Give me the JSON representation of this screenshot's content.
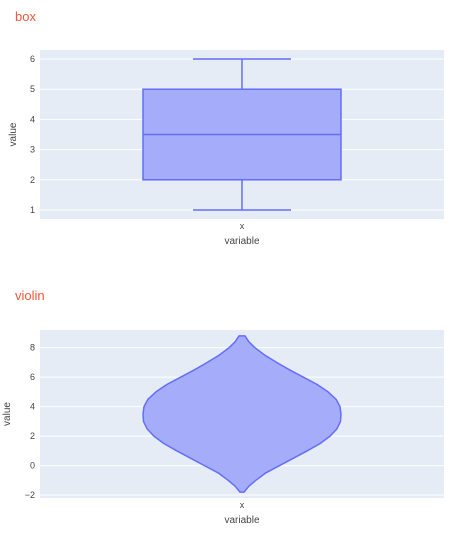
{
  "chart_data": [
    {
      "type": "box",
      "title": "box",
      "xlabel": "variable",
      "ylabel": "value",
      "categories": [
        "x"
      ],
      "stats": {
        "min": 1,
        "q1": 2,
        "median": 3.5,
        "q3": 5,
        "max": 6
      },
      "ylim": [
        0.7,
        6.3
      ],
      "yticks": [
        1,
        2,
        3,
        4,
        5,
        6
      ],
      "grid": true,
      "color": "#636efa",
      "fill": "#a5acf9",
      "background": "#e5ecf6"
    },
    {
      "type": "violin",
      "title": "violin",
      "xlabel": "variable",
      "ylabel": "value",
      "categories": [
        "x"
      ],
      "ylim": [
        -2.2,
        9.2
      ],
      "yticks": [
        -2,
        0,
        2,
        4,
        6,
        8
      ],
      "range": {
        "min": -1.8,
        "max": 8.8
      },
      "density": [
        {
          "y": -1.8,
          "w": 0.02
        },
        {
          "y": -1.4,
          "w": 0.07
        },
        {
          "y": -1.0,
          "w": 0.14
        },
        {
          "y": -0.5,
          "w": 0.24
        },
        {
          "y": 0.0,
          "w": 0.38
        },
        {
          "y": 0.5,
          "w": 0.52
        },
        {
          "y": 1.0,
          "w": 0.66
        },
        {
          "y": 1.5,
          "w": 0.79
        },
        {
          "y": 2.0,
          "w": 0.89
        },
        {
          "y": 2.5,
          "w": 0.96
        },
        {
          "y": 3.0,
          "w": 0.995
        },
        {
          "y": 3.5,
          "w": 1.0
        },
        {
          "y": 4.0,
          "w": 0.99
        },
        {
          "y": 4.5,
          "w": 0.95
        },
        {
          "y": 5.0,
          "w": 0.87
        },
        {
          "y": 5.5,
          "w": 0.76
        },
        {
          "y": 6.0,
          "w": 0.62
        },
        {
          "y": 6.5,
          "w": 0.48
        },
        {
          "y": 7.0,
          "w": 0.35
        },
        {
          "y": 7.5,
          "w": 0.23
        },
        {
          "y": 8.0,
          "w": 0.13
        },
        {
          "y": 8.4,
          "w": 0.07
        },
        {
          "y": 8.8,
          "w": 0.03
        }
      ],
      "grid": true,
      "color": "#636efa",
      "fill": "#a5acf9",
      "background": "#e5ecf6"
    }
  ]
}
